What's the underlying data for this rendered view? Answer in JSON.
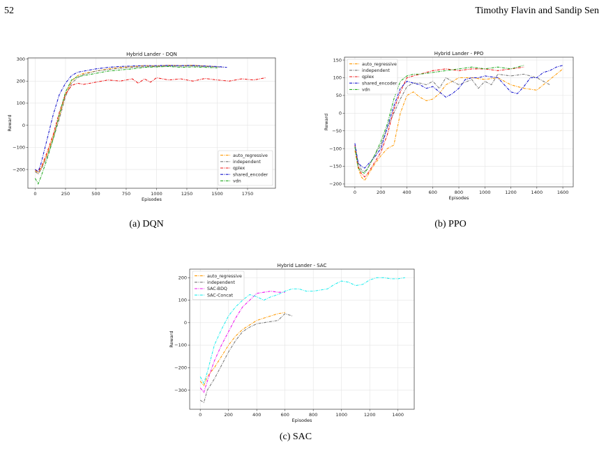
{
  "header": {
    "page_number": "52",
    "authors": "Timothy Flavin and Sandip Sen"
  },
  "captions": {
    "a": "(a) DQN",
    "b": "(b) PPO",
    "c": "(c) SAC"
  },
  "colors": {
    "auto_regressive": "#ff9900",
    "independent": "#777777",
    "qplex": "#ee1111",
    "shared_encoder": "#1111cc",
    "vdn": "#22aa22",
    "sac_bdq": "#ee11ee",
    "sac_concat": "#22eeee"
  },
  "chart_data": [
    {
      "type": "line",
      "title": "Hybrid Lander - DQN",
      "xlabel": "Episodes",
      "ylabel": "Reward",
      "xlim": [
        -60,
        1980
      ],
      "ylim": [
        -285,
        305
      ],
      "xticks": [
        0,
        250,
        500,
        750,
        1000,
        1250,
        1500,
        1750
      ],
      "yticks": [
        -200,
        -100,
        0,
        100,
        200,
        300
      ],
      "legend": "bottom-right",
      "grid": true,
      "series": [
        {
          "name": "auto_regressive",
          "color": "#ff9900",
          "x": [
            0,
            25,
            50,
            100,
            150,
            200,
            250,
            300,
            350,
            400,
            500,
            600,
            700,
            800,
            900,
            1000,
            1100,
            1200,
            1300,
            1400,
            1500
          ],
          "y": [
            -205,
            -215,
            -195,
            -130,
            -50,
            40,
            140,
            200,
            225,
            235,
            245,
            255,
            262,
            265,
            270,
            268,
            272,
            270,
            272,
            268,
            265
          ]
        },
        {
          "name": "independent",
          "color": "#777777",
          "x": [
            0,
            25,
            50,
            100,
            150,
            200,
            250,
            300,
            350,
            400,
            500,
            600,
            700,
            800,
            900,
            1000,
            1100,
            1200,
            1300,
            1400,
            1500,
            1550
          ],
          "y": [
            -210,
            -220,
            -200,
            -140,
            -60,
            30,
            130,
            190,
            215,
            230,
            245,
            252,
            258,
            262,
            265,
            266,
            268,
            267,
            268,
            266,
            264,
            262
          ]
        },
        {
          "name": "qplex",
          "color": "#ee1111",
          "x": [
            0,
            25,
            50,
            100,
            150,
            200,
            250,
            300,
            350,
            400,
            500,
            600,
            700,
            800,
            850,
            900,
            950,
            1000,
            1100,
            1200,
            1300,
            1400,
            1500,
            1600,
            1700,
            1800,
            1900
          ],
          "y": [
            -200,
            -210,
            -190,
            -120,
            -40,
            60,
            140,
            180,
            190,
            185,
            195,
            205,
            200,
            210,
            190,
            210,
            195,
            215,
            205,
            210,
            200,
            212,
            205,
            200,
            210,
            205,
            215
          ]
        },
        {
          "name": "shared_encoder",
          "color": "#1111cc",
          "x": [
            0,
            25,
            50,
            100,
            150,
            200,
            250,
            300,
            350,
            400,
            500,
            600,
            700,
            800,
            900,
            1000,
            1100,
            1200,
            1300,
            1400,
            1500,
            1580
          ],
          "y": [
            -200,
            -210,
            -170,
            -60,
            50,
            140,
            190,
            225,
            240,
            245,
            255,
            262,
            266,
            268,
            270,
            270,
            271,
            270,
            271,
            268,
            266,
            262
          ]
        },
        {
          "name": "vdn",
          "color": "#22aa22",
          "x": [
            0,
            25,
            50,
            100,
            150,
            200,
            250,
            300,
            350,
            400,
            500,
            600,
            700,
            800,
            900,
            1000,
            1100,
            1200,
            1300,
            1400,
            1500
          ],
          "y": [
            -240,
            -265,
            -230,
            -150,
            -60,
            50,
            150,
            205,
            220,
            225,
            235,
            245,
            250,
            255,
            262,
            264,
            266,
            262,
            264,
            262,
            260
          ]
        }
      ]
    },
    {
      "type": "line",
      "title": "Hybrid Lander - PPO",
      "xlabel": "Episodes",
      "ylabel": "Reward",
      "xlim": [
        -80,
        1680
      ],
      "ylim": [
        -208,
        158
      ],
      "xticks": [
        0,
        200,
        400,
        600,
        800,
        1000,
        1200,
        1400,
        1600
      ],
      "yticks": [
        -200,
        -150,
        -100,
        -50,
        0,
        50,
        100,
        150
      ],
      "legend": "top-left",
      "grid": true,
      "series": [
        {
          "name": "auto_regressive",
          "color": "#ff9900",
          "x": [
            0,
            25,
            50,
            75,
            100,
            150,
            200,
            250,
            300,
            350,
            400,
            450,
            500,
            550,
            600,
            650,
            700,
            750,
            800,
            900,
            1000,
            1100,
            1200,
            1300,
            1400,
            1500,
            1600
          ],
          "y": [
            -105,
            -155,
            -180,
            -190,
            -175,
            -145,
            -120,
            -100,
            -90,
            0,
            50,
            60,
            45,
            35,
            40,
            55,
            80,
            90,
            100,
            100,
            95,
            100,
            80,
            70,
            65,
            95,
            125
          ]
        },
        {
          "name": "independent",
          "color": "#777777",
          "x": [
            0,
            25,
            50,
            75,
            100,
            150,
            200,
            250,
            300,
            350,
            400,
            450,
            500,
            550,
            600,
            650,
            700,
            800,
            900,
            950,
            1000,
            1050,
            1100,
            1200,
            1300,
            1400,
            1500
          ],
          "y": [
            -95,
            -140,
            -160,
            -165,
            -155,
            -120,
            -90,
            -40,
            0,
            40,
            75,
            85,
            85,
            80,
            90,
            70,
            100,
            80,
            95,
            70,
            90,
            80,
            110,
            105,
            110,
            100,
            80
          ]
        },
        {
          "name": "qplex",
          "color": "#ee1111",
          "x": [
            0,
            25,
            50,
            75,
            100,
            150,
            200,
            250,
            300,
            350,
            400,
            450,
            500,
            600,
            700,
            800,
            900,
            1000,
            1100,
            1200,
            1300
          ],
          "y": [
            -90,
            -150,
            -170,
            -180,
            -170,
            -140,
            -110,
            -60,
            10,
            60,
            100,
            105,
            110,
            120,
            125,
            120,
            125,
            125,
            120,
            125,
            130
          ]
        },
        {
          "name": "shared_encoder",
          "color": "#1111cc",
          "x": [
            0,
            25,
            50,
            75,
            100,
            150,
            200,
            250,
            300,
            350,
            400,
            450,
            500,
            550,
            600,
            650,
            700,
            750,
            800,
            850,
            900,
            950,
            1000,
            1100,
            1150,
            1200,
            1250,
            1300,
            1350,
            1400,
            1450,
            1500,
            1550,
            1600
          ],
          "y": [
            -85,
            -140,
            -150,
            -155,
            -145,
            -125,
            -100,
            -40,
            20,
            70,
            90,
            85,
            80,
            70,
            75,
            60,
            45,
            55,
            70,
            95,
            100,
            100,
            105,
            100,
            80,
            60,
            55,
            75,
            100,
            100,
            115,
            120,
            130,
            135
          ]
        },
        {
          "name": "vdn",
          "color": "#22aa22",
          "x": [
            0,
            25,
            50,
            75,
            100,
            150,
            200,
            250,
            300,
            350,
            400,
            450,
            500,
            600,
            700,
            800,
            900,
            1000,
            1100,
            1200,
            1300
          ],
          "y": [
            -95,
            -155,
            -165,
            -170,
            -155,
            -120,
            -80,
            -30,
            40,
            90,
            105,
            110,
            110,
            115,
            120,
            125,
            130,
            125,
            130,
            125,
            135
          ]
        }
      ]
    },
    {
      "type": "line",
      "title": "Hybrid Lander - SAC",
      "xlabel": "Episodes",
      "ylabel": "Reward",
      "xlim": [
        -75,
        1515
      ],
      "ylim": [
        -385,
        238
      ],
      "xticks": [
        0,
        200,
        400,
        600,
        800,
        1000,
        1200,
        1400
      ],
      "yticks": [
        -300,
        -200,
        -100,
        0,
        100,
        200
      ],
      "legend": "top-left",
      "grid": true,
      "series": [
        {
          "name": "auto_regressive",
          "color": "#ff9900",
          "x": [
            0,
            25,
            50,
            100,
            150,
            200,
            250,
            300,
            350,
            400,
            450,
            500,
            550,
            600
          ],
          "y": [
            -260,
            -280,
            -240,
            -200,
            -150,
            -100,
            -60,
            -30,
            -10,
            10,
            20,
            30,
            40,
            45
          ]
        },
        {
          "name": "independent",
          "color": "#777777",
          "x": [
            0,
            25,
            50,
            100,
            150,
            200,
            250,
            300,
            350,
            400,
            450,
            500,
            550,
            600,
            650
          ],
          "y": [
            -345,
            -355,
            -300,
            -250,
            -190,
            -130,
            -80,
            -40,
            -20,
            -5,
            0,
            5,
            10,
            40,
            30
          ]
        },
        {
          "name": "SAC-BDQ",
          "color": "#ee11ee",
          "x": [
            0,
            25,
            50,
            100,
            150,
            200,
            250,
            300,
            350,
            400,
            450,
            500,
            550,
            600
          ],
          "y": [
            -290,
            -310,
            -260,
            -170,
            -100,
            -40,
            20,
            70,
            100,
            130,
            135,
            140,
            135,
            135
          ]
        },
        {
          "name": "SAC-Concat",
          "color": "#22eeee",
          "x": [
            0,
            25,
            50,
            100,
            150,
            200,
            250,
            300,
            350,
            400,
            450,
            500,
            550,
            600,
            650,
            700,
            750,
            800,
            850,
            900,
            950,
            1000,
            1050,
            1100,
            1150,
            1200,
            1250,
            1300,
            1350,
            1400,
            1450
          ],
          "y": [
            -240,
            -270,
            -220,
            -100,
            -30,
            30,
            70,
            100,
            125,
            115,
            100,
            115,
            125,
            140,
            150,
            150,
            140,
            140,
            145,
            150,
            170,
            185,
            180,
            165,
            170,
            190,
            200,
            200,
            195,
            195,
            200
          ]
        }
      ]
    }
  ]
}
